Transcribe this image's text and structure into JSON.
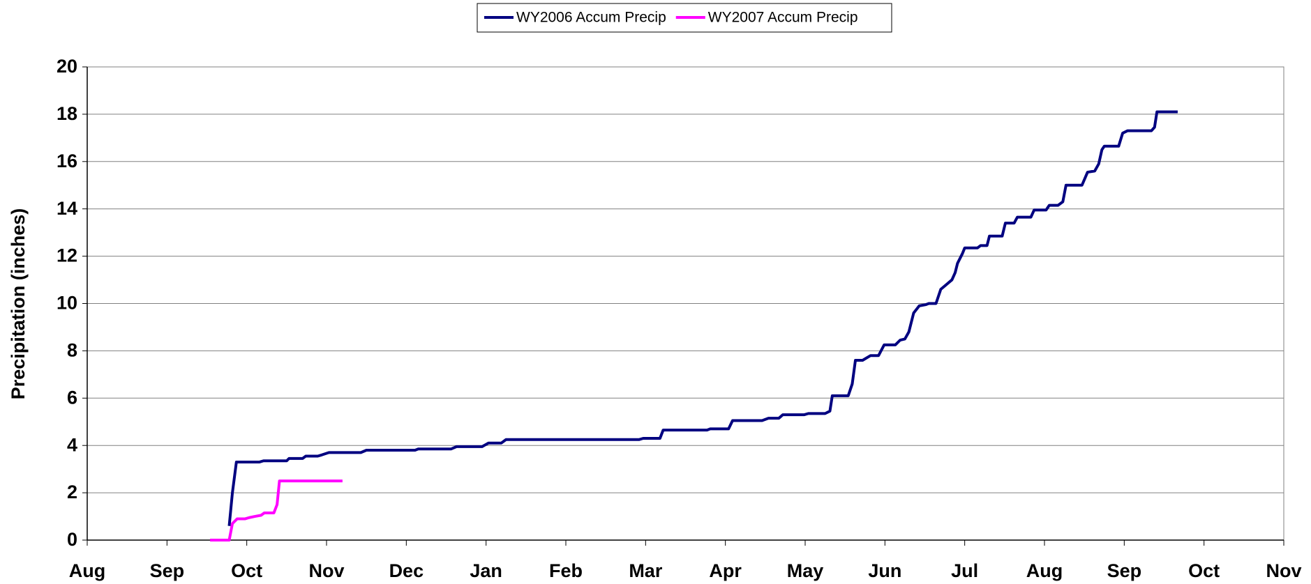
{
  "chart_data": {
    "type": "line",
    "ylabel": "Precipitation (inches)",
    "xlim": [
      0,
      15
    ],
    "xticks": [
      {
        "value": 0,
        "label": "Aug"
      },
      {
        "value": 1,
        "label": "Sep"
      },
      {
        "value": 2,
        "label": "Oct"
      },
      {
        "value": 3,
        "label": "Nov"
      },
      {
        "value": 4,
        "label": "Dec"
      },
      {
        "value": 5,
        "label": "Jan"
      },
      {
        "value": 6,
        "label": "Feb"
      },
      {
        "value": 7,
        "label": "Mar"
      },
      {
        "value": 8,
        "label": "Apr"
      },
      {
        "value": 9,
        "label": "May"
      },
      {
        "value": 10,
        "label": "Jun"
      },
      {
        "value": 11,
        "label": "Jul"
      },
      {
        "value": 12,
        "label": "Aug"
      },
      {
        "value": 13,
        "label": "Sep"
      },
      {
        "value": 14,
        "label": "Oct"
      },
      {
        "value": 15,
        "label": "Nov"
      }
    ],
    "ylim": [
      0,
      20
    ],
    "yticks": [
      0,
      2,
      4,
      6,
      8,
      10,
      12,
      14,
      16,
      18,
      20
    ],
    "grid": true,
    "legend": "top",
    "series": [
      {
        "name": "WY2006 Accum Precip",
        "color": "#000080",
        "x": [
          1.78,
          1.82,
          1.87,
          2.16,
          2.21,
          2.5,
          2.53,
          2.7,
          2.74,
          2.89,
          2.94,
          3.03,
          3.43,
          3.5,
          4.11,
          4.15,
          4.56,
          4.63,
          4.95,
          5.03,
          5.19,
          5.25,
          6.92,
          6.97,
          7.18,
          7.22,
          7.77,
          7.81,
          8.04,
          8.09,
          8.46,
          8.54,
          8.67,
          8.72,
          8.99,
          9.04,
          9.25,
          9.31,
          9.34,
          9.54,
          9.59,
          9.63,
          9.72,
          9.82,
          9.92,
          9.99,
          10.13,
          10.19,
          10.25,
          10.3,
          10.36,
          10.43,
          10.51,
          10.55,
          10.64,
          10.7,
          10.77,
          10.84,
          10.88,
          10.91,
          10.97,
          11.0,
          11.16,
          11.2,
          11.28,
          11.31,
          11.47,
          11.51,
          11.62,
          11.66,
          11.83,
          11.87,
          12.02,
          12.06,
          12.17,
          12.23,
          12.27,
          12.47,
          12.54,
          12.63,
          12.68,
          12.72,
          12.75,
          12.93,
          12.98,
          13.04,
          13.34,
          13.38,
          13.41,
          13.67
        ],
        "values": [
          0.6,
          2.0,
          3.3,
          3.3,
          3.35,
          3.35,
          3.45,
          3.45,
          3.55,
          3.55,
          3.6,
          3.7,
          3.7,
          3.8,
          3.8,
          3.85,
          3.85,
          3.95,
          3.95,
          4.1,
          4.1,
          4.25,
          4.25,
          4.3,
          4.3,
          4.65,
          4.65,
          4.7,
          4.7,
          5.05,
          5.05,
          5.15,
          5.15,
          5.3,
          5.3,
          5.35,
          5.35,
          5.45,
          6.1,
          6.1,
          6.6,
          7.6,
          7.6,
          7.8,
          7.8,
          8.25,
          8.25,
          8.45,
          8.5,
          8.8,
          9.6,
          9.9,
          9.95,
          10.0,
          10.0,
          10.6,
          10.8,
          11.0,
          11.3,
          11.7,
          12.1,
          12.35,
          12.35,
          12.45,
          12.45,
          12.85,
          12.85,
          13.4,
          13.4,
          13.65,
          13.65,
          13.95,
          13.95,
          14.15,
          14.15,
          14.3,
          15.0,
          15.0,
          15.55,
          15.6,
          15.9,
          16.5,
          16.65,
          16.65,
          17.2,
          17.3,
          17.3,
          17.45,
          18.1,
          18.1
        ]
      },
      {
        "name": "WY2007 Accum Precip",
        "color": "#ff00ff",
        "x": [
          1.54,
          1.78,
          1.82,
          1.88,
          1.98,
          2.03,
          2.1,
          2.18,
          2.22,
          2.34,
          2.38,
          2.41,
          3.2
        ],
        "values": [
          0,
          0,
          0.7,
          0.9,
          0.9,
          0.95,
          1.0,
          1.05,
          1.15,
          1.15,
          1.5,
          2.5,
          2.5
        ]
      }
    ]
  }
}
